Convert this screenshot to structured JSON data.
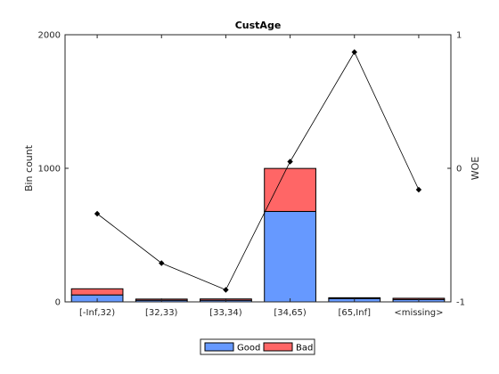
{
  "chart_data": {
    "type": "bar",
    "stacked": true,
    "title": "CustAge",
    "xlabel": "",
    "ylabel": "Bin count",
    "y2label": "WOE",
    "categories": [
      "[-Inf,32)",
      "[32,33)",
      "[33,34)",
      "[34,65)",
      "[65,Inf]",
      "<missing>"
    ],
    "ylim": [
      0,
      2000
    ],
    "yticks": [
      0,
      1000,
      2000
    ],
    "y2lim": [
      -1,
      1
    ],
    "y2ticks": [
      -1,
      0,
      1
    ],
    "series": [
      {
        "name": "Good",
        "color": "#6699ff",
        "values": [
          52,
          12,
          12,
          677,
          25,
          18
        ]
      },
      {
        "name": "Bad",
        "color": "#ff6666",
        "values": [
          46,
          9,
          10,
          322,
          6,
          9
        ]
      }
    ],
    "line": {
      "axis": "right",
      "marker": "diamond",
      "values": [
        -0.34,
        -0.71,
        -0.91,
        0.05,
        0.87,
        -0.16
      ]
    },
    "legend_placement": "bottom",
    "grid": false
  }
}
